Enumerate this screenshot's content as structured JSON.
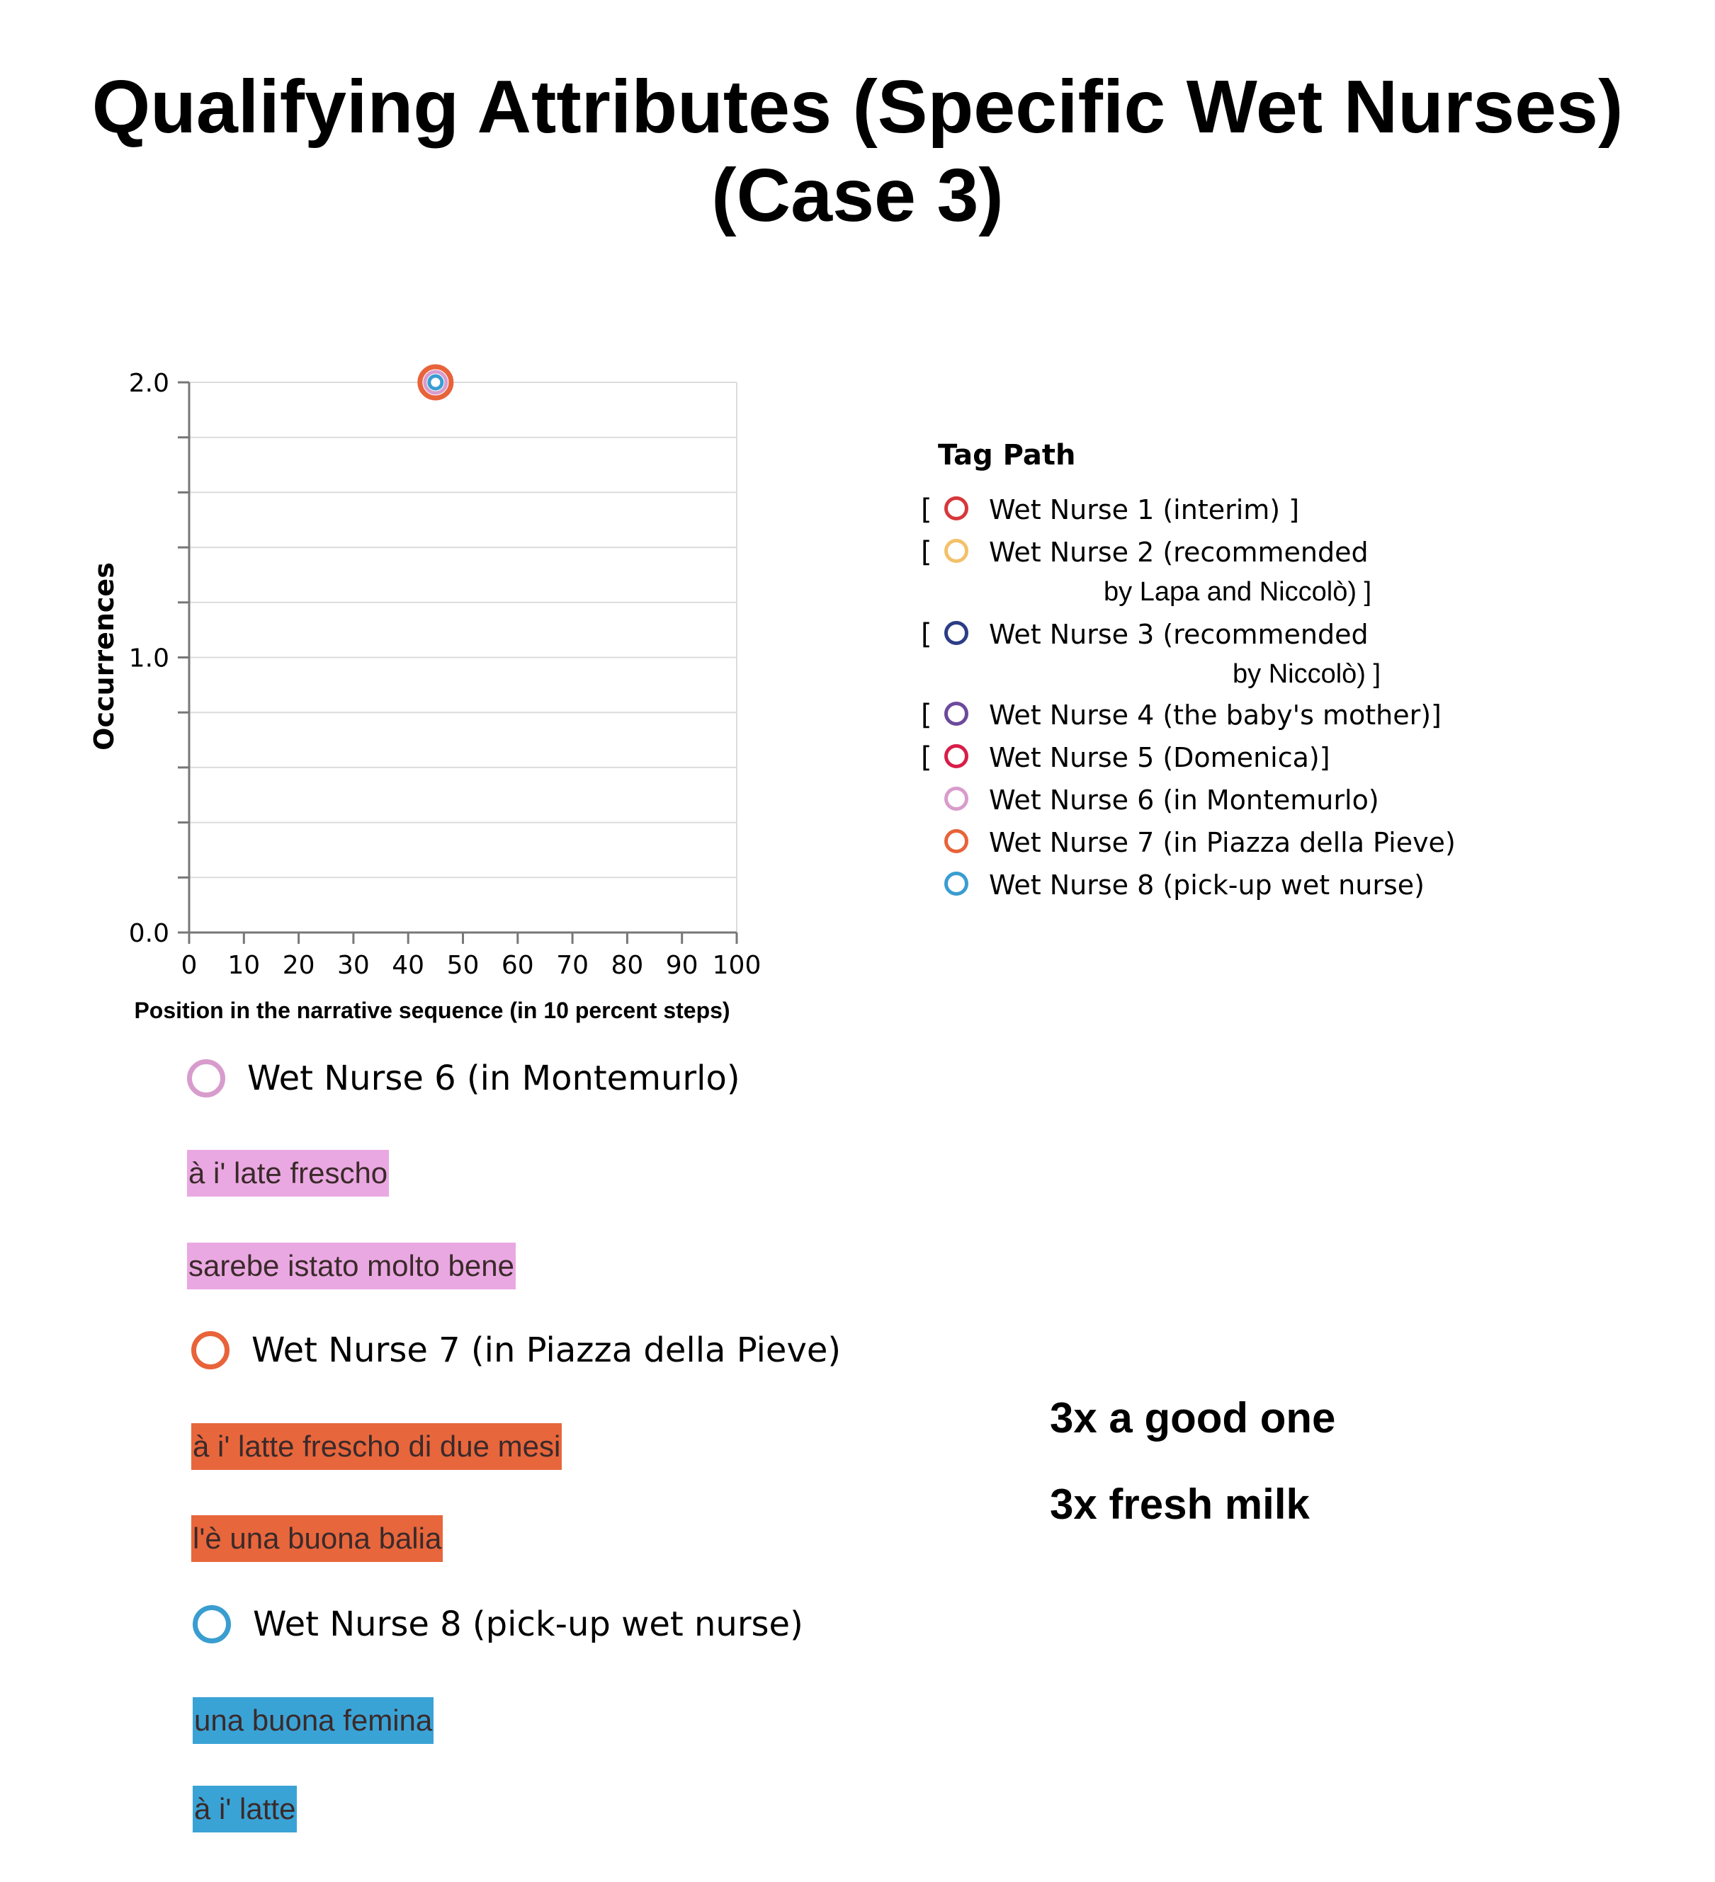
{
  "title_line1": "Qualifying Attributes (Specific Wet Nurses)",
  "title_line2": "(Case 3)",
  "chart_data": {
    "type": "scatter",
    "xlabel": "Position in the narrative sequence (in 10 percent steps)",
    "ylabel": "Occurrences",
    "xlim": [
      0,
      100
    ],
    "ylim": [
      0,
      2
    ],
    "x_ticks": [
      "0",
      "10",
      "20",
      "30",
      "40",
      "50",
      "60",
      "70",
      "80",
      "90",
      "100"
    ],
    "y_ticks": [
      "0.0",
      "1.0",
      "2.0"
    ],
    "grid": true,
    "legend_position": "right",
    "series": [
      {
        "name": "Wet Nurse 7 (in Piazza della Pieve)",
        "color": "#e8633a",
        "points": [
          {
            "x": 45,
            "y": 2
          }
        ]
      },
      {
        "name": "Wet Nurse 6 (in Montemurlo)",
        "color": "#d89ccc",
        "points": [
          {
            "x": 45,
            "y": 2
          }
        ]
      },
      {
        "name": "Wet Nurse 8 (pick-up wet nurse)",
        "color": "#3a9dd0",
        "points": [
          {
            "x": 45,
            "y": 2
          }
        ]
      }
    ]
  },
  "legend": {
    "title": "Tag Path",
    "items": [
      {
        "bracket_open": "[",
        "text": "Wet Nurse 1 (interim) ]",
        "text2": "",
        "color": "#d7383b"
      },
      {
        "bracket_open": "[",
        "text": "Wet Nurse 2 (recommended",
        "text2": "by Lapa and Niccolò) ]",
        "color": "#f3c16a"
      },
      {
        "bracket_open": "[",
        "text": "Wet Nurse 3 (recommended",
        "text2": "by Niccolò) ]",
        "color": "#2c3d85"
      },
      {
        "bracket_open": "[",
        "text": "Wet Nurse 4 (the baby's mother)]",
        "text2": "",
        "color": "#6d4a9c"
      },
      {
        "bracket_open": "[",
        "text": "Wet Nurse 5 (Domenica)]",
        "text2": "",
        "color": "#d81d49"
      },
      {
        "bracket_open": "",
        "text": "Wet Nurse 6 (in Montemurlo)",
        "text2": "",
        "color": "#d89ccc"
      },
      {
        "bracket_open": "",
        "text": "Wet Nurse 7 (in Piazza della Pieve)",
        "text2": "",
        "color": "#e8633a"
      },
      {
        "bracket_open": "",
        "text": "Wet Nurse 8 (pick-up wet nurse)",
        "text2": "",
        "color": "#3a9dd0"
      }
    ]
  },
  "groups": [
    {
      "label": "Wet Nurse 6 (in Montemurlo)",
      "color": "#d89ccc",
      "highlight": "#eaa8e2",
      "snippets": [
        "à i' late frescho",
        "sarebe istato molto bene"
      ]
    },
    {
      "label": "Wet Nurse 7 (in Piazza della Pieve)",
      "color": "#e8633a",
      "highlight": "#e8663c",
      "snippets": [
        "à i' latte frescho di due mesi",
        "l'è una buona balia"
      ]
    },
    {
      "label": "Wet Nurse 8 (pick-up wet nurse)",
      "color": "#3a9dd0",
      "highlight": "#3aa3d6",
      "snippets": [
        "una buona femina",
        "à i' latte"
      ]
    }
  ],
  "summary": [
    "3x a good one",
    "3x fresh milk"
  ]
}
